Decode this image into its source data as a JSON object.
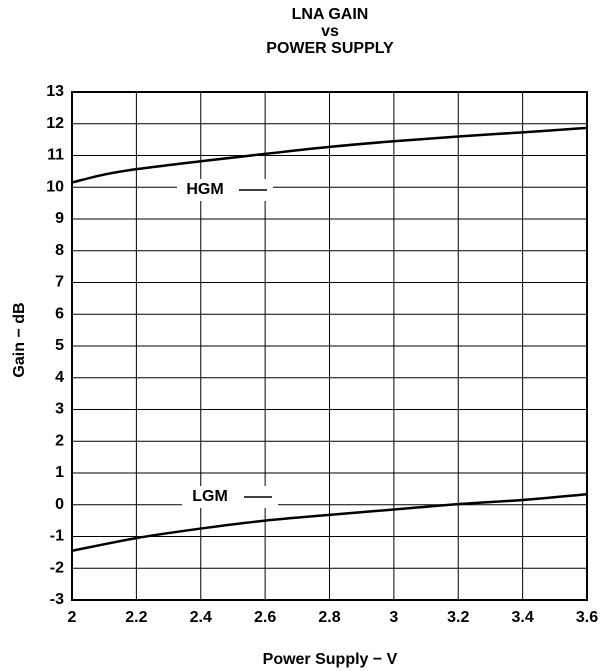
{
  "chart_data": {
    "type": "line",
    "title": [
      "LNA GAIN",
      "vs",
      "POWER SUPPLY"
    ],
    "x_label": "Power Supply − V",
    "y_label": "Gain − dB",
    "xlim": [
      2,
      3.6
    ],
    "xticks": [
      2,
      2.2,
      2.4,
      2.6,
      2.8,
      3,
      3.2,
      3.4,
      3.6
    ],
    "ylim": [
      -3,
      13
    ],
    "yticks": [
      -3,
      -2,
      -1,
      0,
      1,
      2,
      3,
      4,
      5,
      6,
      7,
      8,
      9,
      10,
      11,
      12,
      13
    ],
    "grid": true,
    "series": [
      {
        "name": "HGM",
        "color": "#000000",
        "x": [
          2,
          2.1,
          2.2,
          2.4,
          2.6,
          2.8,
          3,
          3.2,
          3.4,
          3.6
        ],
        "values": [
          10.15,
          10.4,
          10.57,
          10.82,
          11.05,
          11.27,
          11.45,
          11.6,
          11.73,
          11.87
        ]
      },
      {
        "name": "LGM",
        "color": "#000000",
        "x": [
          2,
          2.2,
          2.4,
          2.6,
          2.8,
          3,
          3.2,
          3.4,
          3.6
        ],
        "values": [
          -1.45,
          -1.05,
          -0.75,
          -0.5,
          -0.32,
          -0.15,
          0.02,
          0.15,
          0.33
        ]
      }
    ]
  }
}
